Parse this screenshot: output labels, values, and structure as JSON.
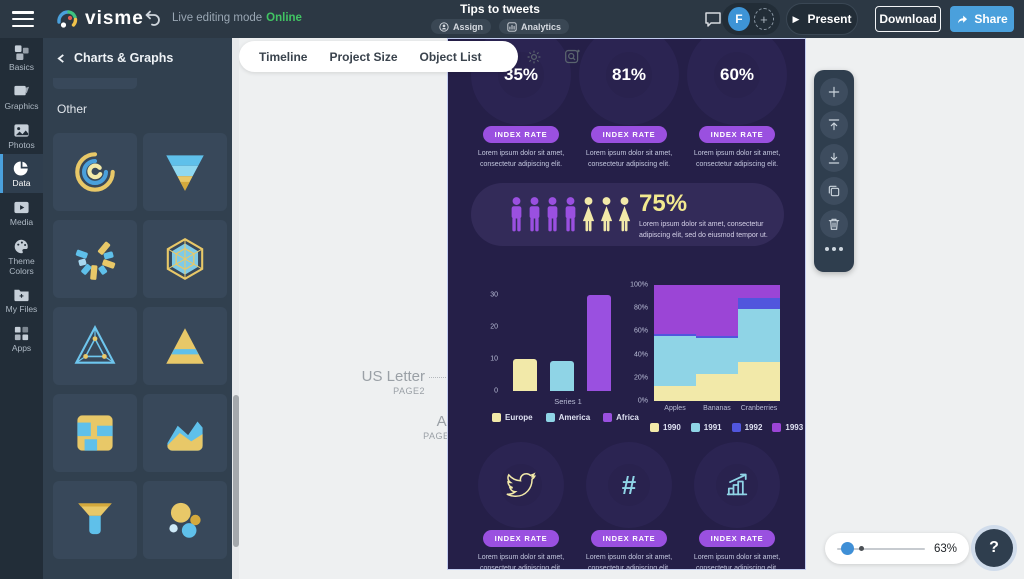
{
  "topbar": {
    "title": "Tips to tweets",
    "logo_text": "visme",
    "mode_label": "Live editing mode",
    "mode_status": "Online",
    "assign_label": "Assign",
    "analytics_label": "Analytics",
    "avatar_initial": "F",
    "present_label": "Present",
    "download_label": "Download",
    "share_label": "Share"
  },
  "sidebar": {
    "items": [
      {
        "id": "basics",
        "label": "Basics",
        "active": false
      },
      {
        "id": "graphics",
        "label": "Graphics",
        "active": false
      },
      {
        "id": "photos",
        "label": "Photos",
        "active": false
      },
      {
        "id": "data",
        "label": "Data",
        "active": true
      },
      {
        "id": "media",
        "label": "Media",
        "active": false
      },
      {
        "id": "theme-colors",
        "label": "Theme Colors",
        "active": false
      },
      {
        "id": "my-files",
        "label": "My Files",
        "active": false
      },
      {
        "id": "apps",
        "label": "Apps",
        "active": false
      }
    ]
  },
  "panel": {
    "title": "Charts & Graphs",
    "section_label": "Other",
    "thumbnails": [
      "radial-gauge-chart",
      "cone-funnel-chart",
      "radial-fan-chart",
      "hexagon-radar-chart",
      "pyramid-wireframe-chart",
      "pyramid-chart",
      "mosaic-chart",
      "area-chart",
      "funnel-chart",
      "bubble-chart"
    ]
  },
  "canvas_toolbar": {
    "tabs": [
      "Timeline",
      "Project Size",
      "Object List"
    ]
  },
  "guides": {
    "us_letter": {
      "label": "US Letter",
      "page": "PAGE2"
    },
    "a4": {
      "label": "A4",
      "page": "PAGE2"
    }
  },
  "zoom_control": {
    "value": "63%",
    "help_label": "?"
  },
  "infographic": {
    "index_rate_label": "INDEX RATE",
    "lorem_short": "Lorem ipsum dolor sit amet, consectetur adipiscing elit.",
    "donut_track": "#3a3263",
    "top_donuts": [
      {
        "label": "35%",
        "pct": 35,
        "color": "#a9dbe8"
      },
      {
        "label": "81%",
        "pct": 81,
        "color": "#a9dbe8"
      },
      {
        "label": "60%",
        "pct": 60,
        "color": "#a9dbe8"
      }
    ],
    "people_stat": {
      "pct": "75%",
      "text": "Lorem ipsum dolor sit amet, consectetur adipiscing elit, sed do eiusmod tempor ut.",
      "male_count": 4,
      "female_count": 3,
      "male_color": "#9a50e0",
      "female_color": "#f2e9a9"
    },
    "bottom_donuts": [
      {
        "icon": "twitter",
        "pct": 85,
        "color": "#f2e9a9"
      },
      {
        "icon": "hashtag",
        "pct": 40,
        "color": "#8fd4e6"
      },
      {
        "icon": "growth",
        "pct": 78,
        "color": "#8fd4e6"
      }
    ]
  },
  "chart_data": [
    {
      "type": "bar",
      "title": "",
      "categories": [
        "Series 1"
      ],
      "series": [
        {
          "name": "Europe",
          "values": [
            10
          ],
          "color": "#f2e9a9"
        },
        {
          "name": "America",
          "values": [
            9.5
          ],
          "color": "#8fd4e6"
        },
        {
          "name": "Africa",
          "values": [
            30
          ],
          "color": "#9a50e0"
        }
      ],
      "ylim": [
        0,
        30
      ],
      "yticks": [
        0,
        10,
        20,
        30
      ],
      "grid": false,
      "legend_position": "bottom"
    },
    {
      "type": "area",
      "stacked": true,
      "title": "",
      "categories": [
        "Apples",
        "Bananas",
        "Cranberries"
      ],
      "series": [
        {
          "name": "1990",
          "values": [
            13,
            23,
            34
          ],
          "color": "#f2e9a9"
        },
        {
          "name": "1991",
          "values": [
            43,
            31,
            45
          ],
          "color": "#8fd4e6"
        },
        {
          "name": "1992",
          "values": [
            2,
            2,
            10
          ],
          "color": "#5156dd"
        },
        {
          "name": "1993",
          "values": [
            42,
            44,
            11
          ],
          "color": "#9b45d6"
        }
      ],
      "ylim": [
        0,
        100
      ],
      "yticks": [
        0,
        20,
        40,
        60,
        80,
        100
      ],
      "ytick_suffix": "%",
      "grid": false,
      "legend_position": "bottom"
    }
  ]
}
